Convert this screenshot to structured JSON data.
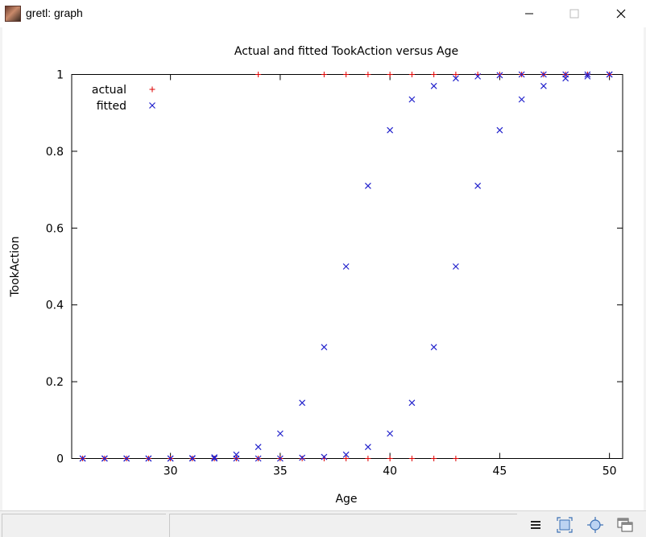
{
  "window": {
    "title": "gretl: graph",
    "icons": {
      "minimize": "minimize-icon",
      "maximize": "maximize-icon",
      "close": "close-icon"
    }
  },
  "chart_data": {
    "type": "scatter",
    "title": "Actual and fitted TookAction versus Age",
    "xlabel": "Age",
    "ylabel": "TookAction",
    "xlim": [
      25.5,
      50.6
    ],
    "ylim": [
      0,
      1
    ],
    "xticks": [
      "30",
      "35",
      "40",
      "45",
      "50"
    ],
    "xtick_values": [
      30,
      35,
      40,
      45,
      50
    ],
    "yticks": [
      "0",
      "0.2",
      "0.4",
      "0.6",
      "0.8",
      "1"
    ],
    "ytick_values": [
      0,
      0.2,
      0.4,
      0.6,
      0.8,
      1
    ],
    "legend_position": "top-left",
    "series": [
      {
        "name": "actual",
        "marker": "plus",
        "color": "#dd0000",
        "points": [
          [
            26,
            0
          ],
          [
            27,
            0
          ],
          [
            28,
            0
          ],
          [
            29,
            0
          ],
          [
            30,
            0
          ],
          [
            31,
            0
          ],
          [
            32,
            0
          ],
          [
            33,
            0
          ],
          [
            34,
            0
          ],
          [
            35,
            0
          ],
          [
            36,
            0
          ],
          [
            37,
            0
          ],
          [
            38,
            0
          ],
          [
            39,
            0
          ],
          [
            40,
            0
          ],
          [
            41,
            0
          ],
          [
            42,
            0
          ],
          [
            43,
            0
          ],
          [
            34,
            1
          ],
          [
            37,
            1
          ],
          [
            38,
            1
          ],
          [
            39,
            1
          ],
          [
            40,
            1
          ],
          [
            41,
            1
          ],
          [
            42,
            1
          ],
          [
            43,
            1
          ],
          [
            44,
            1
          ],
          [
            45,
            1
          ],
          [
            46,
            1
          ],
          [
            47,
            1
          ],
          [
            48,
            1
          ],
          [
            49,
            1
          ],
          [
            50,
            1
          ]
        ]
      },
      {
        "name": "fitted",
        "marker": "cross",
        "color": "#2222cc",
        "points": [
          [
            26,
            0.0
          ],
          [
            27,
            0.0
          ],
          [
            28,
            0.0
          ],
          [
            29,
            0.0
          ],
          [
            30,
            0.0
          ],
          [
            31,
            0.0
          ],
          [
            32,
            0.0
          ],
          [
            33,
            0.0
          ],
          [
            34,
            0.0
          ],
          [
            35,
            0.0
          ],
          [
            36,
            0.002
          ],
          [
            37,
            0.004
          ],
          [
            38,
            0.01
          ],
          [
            39,
            0.03
          ],
          [
            40,
            0.065
          ],
          [
            41,
            0.145
          ],
          [
            42,
            0.29
          ],
          [
            43,
            0.5
          ],
          [
            44,
            0.71
          ],
          [
            45,
            0.855
          ],
          [
            46,
            0.935
          ],
          [
            47,
            0.97
          ],
          [
            48,
            0.99
          ],
          [
            49,
            0.995
          ],
          [
            50,
            1.0
          ],
          [
            26,
            0.0
          ],
          [
            27,
            0.0
          ],
          [
            28,
            0.0
          ],
          [
            29,
            0.0
          ],
          [
            30,
            0.0
          ],
          [
            31,
            0.001
          ],
          [
            32,
            0.003
          ],
          [
            33,
            0.01
          ],
          [
            34,
            0.03
          ],
          [
            35,
            0.065
          ],
          [
            36,
            0.145
          ],
          [
            37,
            0.29
          ],
          [
            38,
            0.5
          ],
          [
            39,
            0.71
          ],
          [
            40,
            0.855
          ],
          [
            41,
            0.935
          ],
          [
            42,
            0.97
          ],
          [
            43,
            0.99
          ],
          [
            44,
            0.995
          ],
          [
            45,
            0.998
          ],
          [
            46,
            1.0
          ],
          [
            47,
            1.0
          ],
          [
            48,
            1.0
          ],
          [
            49,
            1.0
          ],
          [
            50,
            1.0
          ]
        ]
      }
    ]
  },
  "statusbar": {
    "icons": [
      "menu-icon",
      "zoom-icon",
      "center-icon",
      "windows-icon"
    ]
  }
}
